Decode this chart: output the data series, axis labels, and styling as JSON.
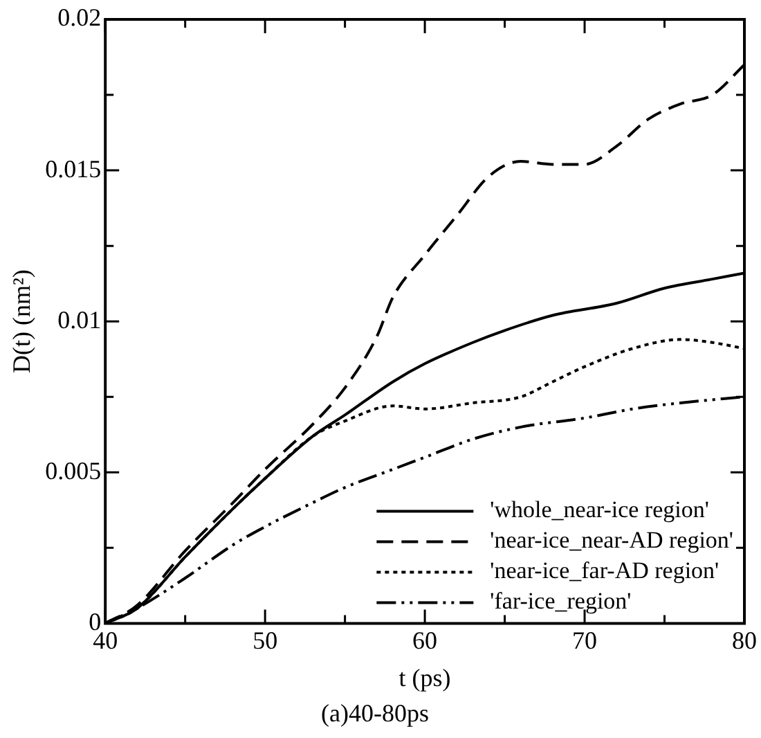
{
  "chart_data": {
    "type": "line",
    "title": "(a)40-80ps",
    "xlabel": "t (ps)",
    "ylabel": "D(t) (nm²)",
    "xlim": [
      40,
      80
    ],
    "xticks": [
      40,
      {
        "value": 45,
        "label": null
      },
      50,
      {
        "value": 55,
        "label": null
      },
      60,
      {
        "value": 65,
        "label": null
      },
      70,
      {
        "value": 75,
        "label": null
      },
      80
    ],
    "ylim": [
      0,
      0.02
    ],
    "yticks": [
      0,
      {
        "value": 0.0025,
        "label": null
      },
      0.005,
      {
        "value": 0.0075,
        "label": null
      },
      0.01,
      {
        "value": 0.0125,
        "label": null
      },
      0.015,
      {
        "value": 0.0175,
        "label": null
      },
      0.02
    ],
    "grid": false,
    "legend": "bottom right",
    "marker": "none",
    "series": [
      {
        "name": "'whole_near-ice region'",
        "color": "#000000",
        "line_style": "solid",
        "x": [
          40,
          42,
          45,
          48,
          50,
          53,
          55,
          58,
          60,
          63,
          65,
          68,
          72,
          75,
          78,
          80
        ],
        "values": [
          0,
          0.0005,
          0.0022,
          0.0038,
          0.0048,
          0.0062,
          0.0069,
          0.008,
          0.0086,
          0.0093,
          0.0097,
          0.0102,
          0.0106,
          0.0111,
          0.0114,
          0.0116
        ]
      },
      {
        "name": "'near-ice_near-AD region'",
        "color": "#000000",
        "line_style": "dashed",
        "x": [
          40,
          42,
          45,
          48,
          50,
          53,
          55,
          57,
          58,
          60,
          62,
          64,
          66,
          68,
          70,
          72,
          74,
          76,
          78,
          80
        ],
        "values": [
          0,
          0.0006,
          0.0024,
          0.004,
          0.0051,
          0.0066,
          0.0078,
          0.0095,
          0.0108,
          0.0122,
          0.0135,
          0.0148,
          0.0153,
          0.0152,
          0.0152,
          0.0158,
          0.0167,
          0.0172,
          0.0175,
          0.0185
        ]
      },
      {
        "name": "'near-ice_far-AD region'",
        "color": "#000000",
        "line_style": "dotted",
        "x": [
          40,
          42,
          45,
          48,
          50,
          53,
          55,
          58,
          60,
          63,
          66,
          68,
          70,
          73,
          76,
          78,
          80
        ],
        "values": [
          0,
          0.0005,
          0.0022,
          0.0038,
          0.0048,
          0.0062,
          0.0067,
          0.0072,
          0.0071,
          0.0073,
          0.0075,
          0.008,
          0.0085,
          0.0091,
          0.0094,
          0.0093,
          0.0091
        ]
      },
      {
        "name": "'far-ice_region'",
        "color": "#000000",
        "line_style": "dashdot",
        "x": [
          40,
          42,
          45,
          48,
          50,
          53,
          55,
          58,
          60,
          63,
          66,
          70,
          73,
          76,
          80
        ],
        "values": [
          0,
          0.0005,
          0.0015,
          0.0026,
          0.0032,
          0.004,
          0.0045,
          0.0051,
          0.0055,
          0.0061,
          0.0065,
          0.0068,
          0.0071,
          0.0073,
          0.0075
        ]
      }
    ]
  }
}
